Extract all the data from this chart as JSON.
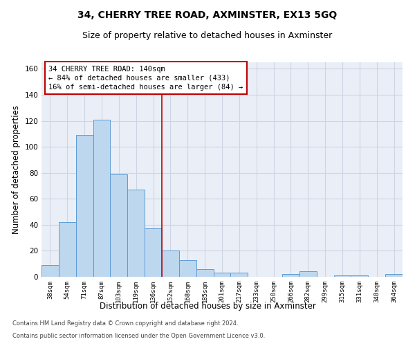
{
  "title": "34, CHERRY TREE ROAD, AXMINSTER, EX13 5GQ",
  "subtitle": "Size of property relative to detached houses in Axminster",
  "xlabel": "Distribution of detached houses by size in Axminster",
  "ylabel": "Number of detached properties",
  "categories": [
    "38sqm",
    "54sqm",
    "71sqm",
    "87sqm",
    "103sqm",
    "119sqm",
    "136sqm",
    "152sqm",
    "168sqm",
    "185sqm",
    "201sqm",
    "217sqm",
    "233sqm",
    "250sqm",
    "266sqm",
    "282sqm",
    "299sqm",
    "315sqm",
    "331sqm",
    "348sqm",
    "364sqm"
  ],
  "values": [
    9,
    42,
    109,
    121,
    79,
    67,
    37,
    20,
    13,
    6,
    3,
    3,
    0,
    0,
    2,
    4,
    0,
    1,
    1,
    0,
    2
  ],
  "bar_color": "#bdd7ee",
  "bar_edge_color": "#5b9bd5",
  "vline_x": 6.5,
  "vline_color": "#c00000",
  "annotation_line1": "34 CHERRY TREE ROAD: 140sqm",
  "annotation_line2": "← 84% of detached houses are smaller (433)",
  "annotation_line3": "16% of semi-detached houses are larger (84) →",
  "annotation_box_color": "#ffffff",
  "annotation_box_edge": "#c00000",
  "ylim": [
    0,
    165
  ],
  "yticks": [
    0,
    20,
    40,
    60,
    80,
    100,
    120,
    140,
    160
  ],
  "grid_color": "#cdd5e3",
  "background_color": "#eaeff7",
  "footer1": "Contains HM Land Registry data © Crown copyright and database right 2024.",
  "footer2": "Contains public sector information licensed under the Open Government Licence v3.0.",
  "title_fontsize": 10,
  "subtitle_fontsize": 9,
  "annotation_fontsize": 7.5,
  "xlabel_fontsize": 8.5,
  "ylabel_fontsize": 8.5,
  "footer_fontsize": 6
}
